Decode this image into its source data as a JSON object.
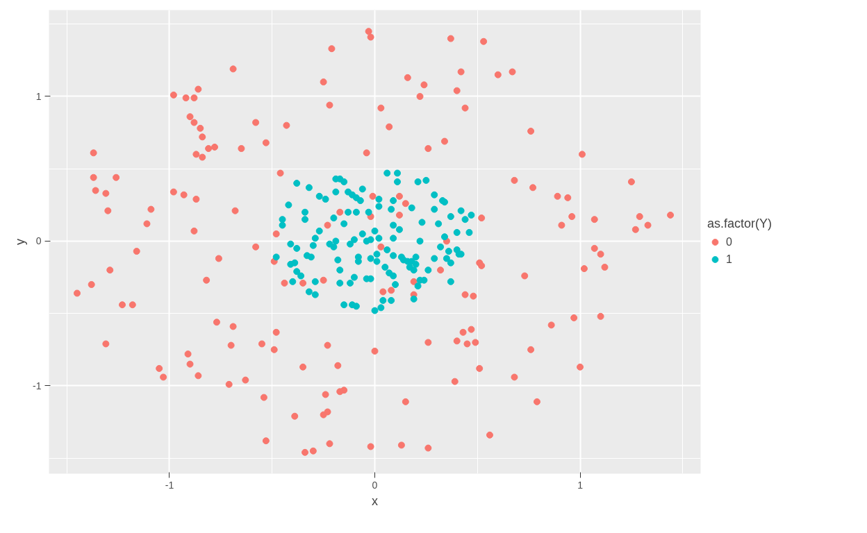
{
  "chart_data": {
    "type": "scatter",
    "xlabel": "x",
    "ylabel": "y",
    "legend_title": "as.factor(Y)",
    "xlim": [
      -1.587,
      1.587
    ],
    "ylim": [
      -1.607,
      1.597
    ],
    "xticks": [
      -1,
      0,
      1
    ],
    "yticks": [
      -1,
      0,
      1
    ],
    "grid": true,
    "legend": "right",
    "marker": "circle",
    "series": [
      {
        "name": "0",
        "color": "#f8766d",
        "x": [
          -0.03,
          -0.02,
          -0.21,
          0.37,
          0.53,
          -0.69,
          -0.25,
          0.16,
          0.24,
          0.42,
          0.6,
          0.67,
          -0.98,
          -0.92,
          -0.88,
          -0.86,
          0.4,
          0.22,
          -0.22,
          0.03,
          0.44,
          -0.9,
          -0.88,
          -0.85,
          -0.84,
          -0.58,
          -0.43,
          0.07,
          0.76,
          -0.81,
          -0.78,
          -0.65,
          -0.53,
          -0.04,
          0.26,
          0.34,
          1.01,
          -1.37,
          -0.87,
          -0.84,
          -1.37,
          -1.26,
          -0.46,
          -1.36,
          -1.31,
          -0.98,
          -0.93,
          -0.87,
          0.68,
          0.77,
          1.25,
          0.89,
          0.94,
          -1.3,
          -1.09,
          -0.68,
          -1.11,
          0.96,
          1.07,
          1.44,
          1.29,
          1.33,
          1.27,
          0.91,
          -0.88,
          0.52,
          0.12,
          -0.02,
          -0.23,
          -1.16,
          -0.58,
          -0.76,
          0.03,
          1.07,
          1.1,
          1.12,
          1.02,
          0.51,
          0.52,
          -0.49,
          -1.29,
          -0.82,
          0.73,
          0.32,
          -1.45,
          -1.38,
          -0.44,
          -0.35,
          -0.25,
          0.04,
          0.08,
          0.19,
          0.44,
          0.48,
          -1.23,
          -1.18,
          0.19,
          -0.77,
          -0.69,
          -0.48,
          0.86,
          1.1,
          0.97,
          0.43,
          0.47,
          0.4,
          0.45,
          0.49,
          0.26,
          -1.31,
          -0.7,
          -0.55,
          -0.49,
          -0.23,
          0.0,
          0.76,
          -0.91,
          -0.9,
          -0.35,
          -0.18,
          -1.05,
          -1.03,
          -0.86,
          0.51,
          1.0,
          -0.63,
          -0.71,
          0.68,
          0.39,
          -0.15,
          -0.17,
          -0.54,
          -0.24,
          0.15,
          0.79,
          -0.39,
          -0.23,
          -0.25,
          -0.53,
          -0.22,
          0.56,
          0.13,
          -0.02,
          -0.34,
          -0.3,
          0.26,
          0.12,
          0.15,
          -0.17,
          0.35,
          -0.01,
          -0.48
        ],
        "values": [
          1.45,
          1.41,
          1.33,
          1.4,
          1.38,
          1.19,
          1.1,
          1.13,
          1.08,
          1.17,
          1.15,
          1.17,
          1.01,
          0.99,
          0.99,
          1.05,
          1.04,
          1.0,
          0.94,
          0.92,
          0.92,
          0.86,
          0.82,
          0.78,
          0.72,
          0.82,
          0.8,
          0.79,
          0.76,
          0.64,
          0.65,
          0.64,
          0.68,
          0.61,
          0.64,
          0.69,
          0.6,
          0.61,
          0.6,
          0.58,
          0.44,
          0.44,
          0.47,
          0.35,
          0.33,
          0.34,
          0.32,
          0.29,
          0.42,
          0.37,
          0.41,
          0.31,
          0.3,
          0.21,
          0.22,
          0.21,
          0.12,
          0.17,
          0.15,
          0.18,
          0.17,
          0.11,
          0.08,
          0.11,
          0.07,
          0.16,
          0.18,
          0.17,
          0.11,
          -0.07,
          -0.04,
          -0.12,
          -0.04,
          -0.05,
          -0.09,
          -0.18,
          -0.19,
          -0.15,
          -0.17,
          -0.14,
          -0.2,
          -0.27,
          -0.24,
          -0.2,
          -0.36,
          -0.3,
          -0.29,
          -0.29,
          -0.27,
          -0.35,
          -0.34,
          -0.28,
          -0.37,
          -0.38,
          -0.44,
          -0.44,
          -0.37,
          -0.56,
          -0.59,
          -0.63,
          -0.58,
          -0.52,
          -0.53,
          -0.63,
          -0.61,
          -0.69,
          -0.71,
          -0.7,
          -0.7,
          -0.71,
          -0.72,
          -0.71,
          -0.75,
          -0.72,
          -0.76,
          -0.75,
          -0.78,
          -0.85,
          -0.87,
          -0.86,
          -0.88,
          -0.94,
          -0.93,
          -0.88,
          -0.87,
          -0.96,
          -0.99,
          -0.94,
          -0.97,
          -1.03,
          -1.04,
          -1.08,
          -1.06,
          -1.11,
          -1.11,
          -1.21,
          -1.18,
          -1.2,
          -1.38,
          -1.4,
          -1.34,
          -1.41,
          -1.42,
          -1.46,
          -1.45,
          -1.43,
          0.31,
          0.26,
          0.2,
          0.0,
          0.31,
          0.05
        ]
      },
      {
        "name": "1",
        "color": "#00bfc4",
        "x": [
          -0.32,
          -0.19,
          -0.17,
          -0.15,
          0.06,
          0.11,
          0.11,
          0.25,
          0.21,
          -0.38,
          -0.42,
          -0.27,
          -0.24,
          -0.19,
          -0.13,
          -0.11,
          -0.09,
          -0.06,
          -0.07,
          0.02,
          0.02,
          0.09,
          0.18,
          0.29,
          0.33,
          0.34,
          0.29,
          0.42,
          0.47,
          0.44,
          0.37,
          0.31,
          0.23,
          0.08,
          -0.03,
          -0.09,
          -0.13,
          -0.15,
          -0.2,
          -0.34,
          -0.34,
          -0.45,
          -0.45,
          -0.29,
          -0.27,
          -0.3,
          -0.38,
          -0.41,
          -0.48,
          -0.41,
          -0.39,
          -0.38,
          -0.36,
          -0.4,
          -0.33,
          -0.31,
          -0.29,
          -0.32,
          -0.29,
          -0.22,
          -0.2,
          -0.19,
          -0.18,
          -0.17,
          -0.17,
          -0.15,
          -0.11,
          -0.09,
          -0.12,
          -0.1,
          -0.08,
          -0.08,
          -0.12,
          -0.1,
          -0.06,
          -0.04,
          -0.02,
          -0.02,
          0.01,
          0.01,
          0.0,
          0.02,
          0.0,
          0.03,
          0.04,
          0.08,
          0.07,
          0.09,
          0.1,
          0.05,
          0.06,
          0.09,
          0.09,
          0.09,
          0.12,
          0.13,
          0.14,
          0.16,
          0.17,
          0.18,
          0.19,
          0.2,
          0.2,
          0.19,
          0.21,
          0.22,
          0.24,
          0.26,
          0.29,
          0.32,
          0.34,
          0.35,
          0.37,
          0.37,
          0.4,
          0.41,
          0.42,
          0.46,
          0.36,
          0.4,
          -0.04,
          -0.02,
          0.22
        ],
        "values": [
          0.37,
          0.43,
          0.43,
          0.41,
          0.47,
          0.47,
          0.41,
          0.42,
          0.41,
          0.4,
          0.25,
          0.31,
          0.29,
          0.34,
          0.34,
          0.32,
          0.3,
          0.36,
          0.28,
          0.29,
          0.24,
          0.28,
          0.23,
          0.32,
          0.28,
          0.27,
          0.22,
          0.21,
          0.18,
          0.15,
          0.17,
          0.12,
          0.13,
          0.22,
          0.2,
          0.2,
          0.2,
          0.12,
          0.16,
          0.2,
          0.15,
          0.15,
          0.11,
          0.02,
          0.07,
          -0.03,
          -0.05,
          -0.02,
          -0.11,
          -0.16,
          -0.15,
          -0.21,
          -0.24,
          -0.28,
          -0.1,
          -0.11,
          -0.28,
          -0.35,
          -0.37,
          -0.02,
          -0.04,
          0.0,
          -0.13,
          -0.2,
          -0.29,
          -0.44,
          -0.44,
          -0.45,
          -0.29,
          -0.25,
          -0.11,
          -0.14,
          -0.02,
          0.01,
          0.05,
          0.0,
          0.01,
          -0.12,
          -0.14,
          -0.09,
          0.07,
          0.02,
          -0.48,
          -0.46,
          -0.41,
          -0.41,
          -0.22,
          -0.24,
          -0.3,
          -0.18,
          -0.06,
          -0.1,
          0.02,
          0.11,
          0.08,
          -0.11,
          -0.13,
          -0.14,
          -0.18,
          -0.14,
          -0.2,
          -0.11,
          -0.16,
          -0.4,
          -0.31,
          -0.27,
          -0.27,
          -0.2,
          -0.12,
          -0.04,
          0.03,
          -0.12,
          -0.15,
          -0.28,
          -0.06,
          -0.09,
          -0.09,
          0.06,
          -0.07,
          0.06,
          -0.26,
          -0.26,
          0.0
        ]
      }
    ]
  }
}
